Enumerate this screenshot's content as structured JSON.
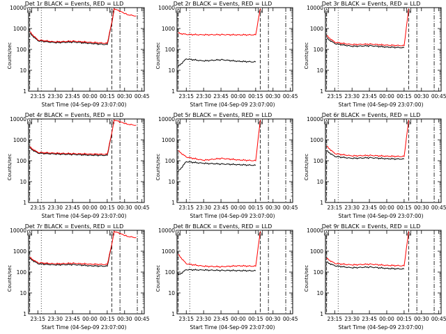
{
  "chart_data": [
    {
      "type": "line",
      "title": "Det 1r BLACK = Events, RED = LLD",
      "xlabel": "Start Time (04-Sep-09 23:07:00)",
      "ylabel": "Counts/sec",
      "x_ticks": [
        "23:15",
        "23:30",
        "23:45",
        "00:00",
        "00:15",
        "00:30",
        "00:45"
      ],
      "y_ticks": [
        "1",
        "10",
        "100",
        "1000",
        "10000"
      ],
      "ylim": [
        1,
        10000
      ],
      "yscale": "log",
      "series": [
        {
          "color": "#000000",
          "values": [
            {
              "x": "23:08",
              "y": 600
            },
            {
              "x": "23:15",
              "y": 260
            },
            {
              "x": "23:30",
              "y": 210
            },
            {
              "x": "23:45",
              "y": 225
            },
            {
              "x": "00:00",
              "y": 195
            },
            {
              "x": "00:15",
              "y": 170
            },
            {
              "x": "00:19",
              "y": 1800
            },
            {
              "x": "00:21",
              "y": 9000
            }
          ]
        },
        {
          "color": "#ff0000",
          "values": [
            {
              "x": "23:08",
              "y": 700
            },
            {
              "x": "23:15",
              "y": 280
            },
            {
              "x": "23:30",
              "y": 230
            },
            {
              "x": "23:45",
              "y": 250
            },
            {
              "x": "00:00",
              "y": 220
            },
            {
              "x": "00:15",
              "y": 195
            },
            {
              "x": "00:19",
              "y": 2000
            },
            {
              "x": "00:21",
              "y": 9000
            },
            {
              "x": "00:33",
              "y": 4500
            },
            {
              "x": "00:40",
              "y": 4000
            }
          ]
        }
      ]
    },
    {
      "type": "line",
      "title": "Det 2r BLACK = Events, RED = LLD",
      "xlabel": "Start Time (04-Sep-09 23:07:00)",
      "ylabel": "Counts/sec",
      "x_ticks": [
        "23:15",
        "23:30",
        "23:45",
        "00:00",
        "00:15",
        "00:30",
        "00:45"
      ],
      "y_ticks": [
        "1",
        "10",
        "100",
        "1000",
        "10000"
      ],
      "ylim": [
        1,
        10000
      ],
      "yscale": "log",
      "series": [
        {
          "color": "#000000",
          "values": [
            {
              "x": "23:08",
              "y": 15
            },
            {
              "x": "23:15",
              "y": 35
            },
            {
              "x": "23:30",
              "y": 28
            },
            {
              "x": "23:45",
              "y": 32
            },
            {
              "x": "00:00",
              "y": 27
            },
            {
              "x": "00:15",
              "y": 25
            }
          ]
        },
        {
          "color": "#ff0000",
          "values": [
            {
              "x": "23:08",
              "y": 600
            },
            {
              "x": "23:15",
              "y": 520
            },
            {
              "x": "23:30",
              "y": 500
            },
            {
              "x": "23:45",
              "y": 510
            },
            {
              "x": "00:00",
              "y": 500
            },
            {
              "x": "00:15",
              "y": 500
            },
            {
              "x": "00:19",
              "y": 9000
            }
          ]
        }
      ]
    },
    {
      "type": "line",
      "title": "Det 3r BLACK = Events, RED = LLD",
      "xlabel": "Start Time (04-Sep-09 23:07:00)",
      "ylabel": "Counts/sec",
      "x_ticks": [
        "23:15",
        "23:30",
        "23:45",
        "00:00",
        "00:15",
        "00:30",
        "00:45"
      ],
      "y_ticks": [
        "1",
        "10",
        "100",
        "1000",
        "10000"
      ],
      "ylim": [
        1,
        10000
      ],
      "yscale": "log",
      "series": [
        {
          "color": "#000000",
          "values": [
            {
              "x": "23:08",
              "y": 350
            },
            {
              "x": "23:15",
              "y": 190
            },
            {
              "x": "23:30",
              "y": 140
            },
            {
              "x": "23:45",
              "y": 150
            },
            {
              "x": "00:00",
              "y": 130
            },
            {
              "x": "00:15",
              "y": 120
            }
          ]
        },
        {
          "color": "#ff0000",
          "values": [
            {
              "x": "23:08",
              "y": 450
            },
            {
              "x": "23:15",
              "y": 220
            },
            {
              "x": "23:30",
              "y": 170
            },
            {
              "x": "23:45",
              "y": 180
            },
            {
              "x": "00:00",
              "y": 160
            },
            {
              "x": "00:15",
              "y": 150
            },
            {
              "x": "00:19",
              "y": 9000
            }
          ]
        }
      ]
    },
    {
      "type": "line",
      "title": "Det 4r BLACK = Events, RED = LLD",
      "xlabel": "Start Time (04-Sep-09 23:07:00)",
      "ylabel": "Counts/sec",
      "x_ticks": [
        "23:15",
        "23:30",
        "23:45",
        "00:00",
        "00:15",
        "00:30",
        "00:45"
      ],
      "y_ticks": [
        "1",
        "10",
        "100",
        "1000",
        "10000"
      ],
      "ylim": [
        1,
        10000
      ],
      "yscale": "log",
      "series": [
        {
          "color": "#000000",
          "values": [
            {
              "x": "23:08",
              "y": 400
            },
            {
              "x": "23:15",
              "y": 230
            },
            {
              "x": "23:30",
              "y": 210
            },
            {
              "x": "23:45",
              "y": 200
            },
            {
              "x": "00:00",
              "y": 185
            },
            {
              "x": "00:15",
              "y": 180
            },
            {
              "x": "00:19",
              "y": 2000
            }
          ]
        },
        {
          "color": "#ff0000",
          "values": [
            {
              "x": "23:08",
              "y": 450
            },
            {
              "x": "23:15",
              "y": 250
            },
            {
              "x": "23:30",
              "y": 230
            },
            {
              "x": "23:45",
              "y": 220
            },
            {
              "x": "00:00",
              "y": 210
            },
            {
              "x": "00:15",
              "y": 205
            },
            {
              "x": "00:19",
              "y": 2200
            },
            {
              "x": "00:21",
              "y": 9000
            },
            {
              "x": "00:33",
              "y": 5500
            },
            {
              "x": "00:40",
              "y": 5000
            }
          ]
        }
      ]
    },
    {
      "type": "line",
      "title": "Det 5r BLACK = Events, RED = LLD",
      "xlabel": "Start Time (04-Sep-09 23:07:00)",
      "ylabel": "Counts/sec",
      "x_ticks": [
        "23:15",
        "23:30",
        "23:45",
        "00:00",
        "00:15",
        "00:30",
        "00:45"
      ],
      "y_ticks": [
        "1",
        "10",
        "100",
        "1000",
        "10000"
      ],
      "ylim": [
        1,
        10000
      ],
      "yscale": "log",
      "series": [
        {
          "color": "#000000",
          "values": [
            {
              "x": "23:08",
              "y": 30
            },
            {
              "x": "23:15",
              "y": 90
            },
            {
              "x": "23:30",
              "y": 75
            },
            {
              "x": "23:45",
              "y": 70
            },
            {
              "x": "00:00",
              "y": 65
            },
            {
              "x": "00:15",
              "y": 60
            }
          ]
        },
        {
          "color": "#ff0000",
          "values": [
            {
              "x": "23:08",
              "y": 300
            },
            {
              "x": "23:15",
              "y": 150
            },
            {
              "x": "23:30",
              "y": 105
            },
            {
              "x": "23:45",
              "y": 130
            },
            {
              "x": "00:00",
              "y": 110
            },
            {
              "x": "00:15",
              "y": 100
            },
            {
              "x": "00:19",
              "y": 9000
            }
          ]
        }
      ]
    },
    {
      "type": "line",
      "title": "Det 6r BLACK = Events, RED = LLD",
      "xlabel": "Start Time (04-Sep-09 23:07:00)",
      "ylabel": "Counts/sec",
      "x_ticks": [
        "23:15",
        "23:30",
        "23:45",
        "00:00",
        "00:15",
        "00:30",
        "00:45"
      ],
      "y_ticks": [
        "1",
        "10",
        "100",
        "1000",
        "10000"
      ],
      "ylim": [
        1,
        10000
      ],
      "yscale": "log",
      "series": [
        {
          "color": "#000000",
          "values": [
            {
              "x": "23:08",
              "y": 300
            },
            {
              "x": "23:15",
              "y": 160
            },
            {
              "x": "23:30",
              "y": 130
            },
            {
              "x": "23:45",
              "y": 140
            },
            {
              "x": "00:00",
              "y": 125
            },
            {
              "x": "00:15",
              "y": 120
            }
          ]
        },
        {
          "color": "#ff0000",
          "values": [
            {
              "x": "23:08",
              "y": 500
            },
            {
              "x": "23:15",
              "y": 220
            },
            {
              "x": "23:30",
              "y": 170
            },
            {
              "x": "23:45",
              "y": 180
            },
            {
              "x": "00:00",
              "y": 165
            },
            {
              "x": "00:15",
              "y": 160
            },
            {
              "x": "00:19",
              "y": 9000
            }
          ]
        }
      ]
    },
    {
      "type": "line",
      "title": "Det 7r BLACK = Events, RED = LLD",
      "xlabel": "Start Time (04-Sep-09 23:07:00)",
      "ylabel": "Counts/sec",
      "x_ticks": [
        "23:15",
        "23:30",
        "23:45",
        "00:00",
        "00:15",
        "00:30",
        "00:45"
      ],
      "y_ticks": [
        "1",
        "10",
        "100",
        "1000",
        "10000"
      ],
      "ylim": [
        1,
        10000
      ],
      "yscale": "log",
      "series": [
        {
          "color": "#000000",
          "values": [
            {
              "x": "23:08",
              "y": 450
            },
            {
              "x": "23:15",
              "y": 250
            },
            {
              "x": "23:30",
              "y": 220
            },
            {
              "x": "23:45",
              "y": 230
            },
            {
              "x": "00:00",
              "y": 200
            },
            {
              "x": "00:15",
              "y": 190
            },
            {
              "x": "00:19",
              "y": 2000
            }
          ]
        },
        {
          "color": "#ff0000",
          "values": [
            {
              "x": "23:08",
              "y": 500
            },
            {
              "x": "23:15",
              "y": 280
            },
            {
              "x": "23:30",
              "y": 250
            },
            {
              "x": "23:45",
              "y": 265
            },
            {
              "x": "00:00",
              "y": 240
            },
            {
              "x": "00:15",
              "y": 230
            },
            {
              "x": "00:19",
              "y": 2200
            },
            {
              "x": "00:21",
              "y": 9000
            },
            {
              "x": "00:33",
              "y": 5000
            },
            {
              "x": "00:40",
              "y": 4500
            }
          ]
        }
      ]
    },
    {
      "type": "line",
      "title": "Det 8r BLACK = Events, RED = LLD",
      "xlabel": "Start Time (04-Sep-09 23:07:00)",
      "ylabel": "Counts/sec",
      "x_ticks": [
        "23:15",
        "23:30",
        "23:45",
        "00:00",
        "00:15",
        "00:30",
        "00:45"
      ],
      "y_ticks": [
        "1",
        "10",
        "100",
        "1000",
        "10000"
      ],
      "ylim": [
        1,
        10000
      ],
      "yscale": "log",
      "series": [
        {
          "color": "#000000",
          "values": [
            {
              "x": "23:08",
              "y": 70
            },
            {
              "x": "23:15",
              "y": 130
            },
            {
              "x": "23:30",
              "y": 125
            },
            {
              "x": "23:45",
              "y": 120
            },
            {
              "x": "00:00",
              "y": 118
            },
            {
              "x": "00:15",
              "y": 115
            }
          ]
        },
        {
          "color": "#ff0000",
          "values": [
            {
              "x": "23:08",
              "y": 700
            },
            {
              "x": "23:15",
              "y": 250
            },
            {
              "x": "23:30",
              "y": 190
            },
            {
              "x": "23:45",
              "y": 180
            },
            {
              "x": "00:00",
              "y": 200
            },
            {
              "x": "00:15",
              "y": 190
            },
            {
              "x": "00:19",
              "y": 9000
            }
          ]
        }
      ]
    },
    {
      "type": "line",
      "title": "Det 9r BLACK = Events, RED = LLD",
      "xlabel": "Start Time (04-Sep-09 23:07:00)",
      "ylabel": "Counts/sec",
      "x_ticks": [
        "23:15",
        "23:30",
        "23:45",
        "00:00",
        "00:15",
        "00:30",
        "00:45"
      ],
      "y_ticks": [
        "1",
        "10",
        "100",
        "1000",
        "10000"
      ],
      "ylim": [
        1,
        10000
      ],
      "yscale": "log",
      "series": [
        {
          "color": "#000000",
          "values": [
            {
              "x": "23:08",
              "y": 300
            },
            {
              "x": "23:15",
              "y": 200
            },
            {
              "x": "23:30",
              "y": 160
            },
            {
              "x": "23:45",
              "y": 175
            },
            {
              "x": "00:00",
              "y": 150
            },
            {
              "x": "00:15",
              "y": 140
            }
          ]
        },
        {
          "color": "#ff0000",
          "values": [
            {
              "x": "23:08",
              "y": 450
            },
            {
              "x": "23:15",
              "y": 260
            },
            {
              "x": "23:30",
              "y": 220
            },
            {
              "x": "23:45",
              "y": 240
            },
            {
              "x": "00:00",
              "y": 210
            },
            {
              "x": "00:15",
              "y": 200
            },
            {
              "x": "00:19",
              "y": 9000
            }
          ]
        }
      ]
    }
  ]
}
